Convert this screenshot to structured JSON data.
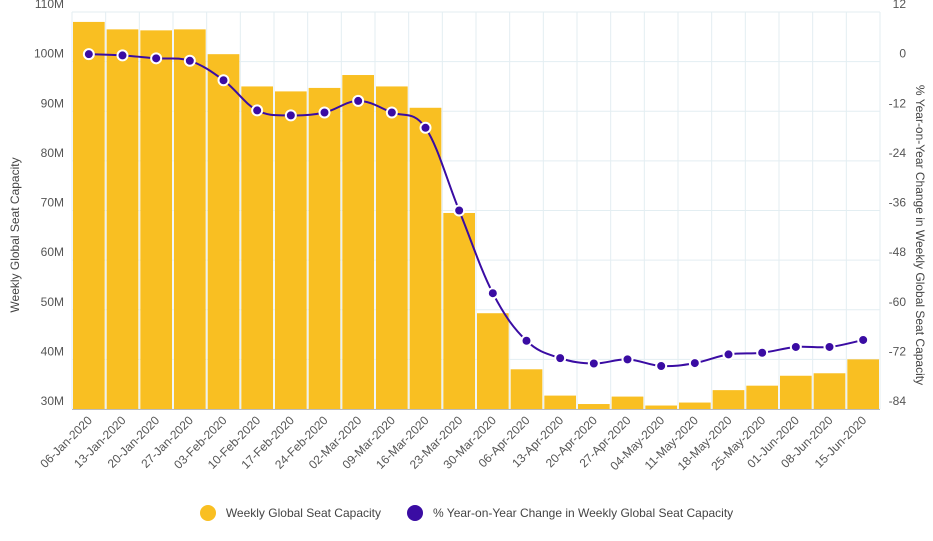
{
  "chart_data": {
    "type": "bar",
    "title": "",
    "categories": [
      "06-Jan-2020",
      "13-Jan-2020",
      "20-Jan-2020",
      "27-Jan-2020",
      "03-Feb-2020",
      "10-Feb-2020",
      "17-Feb-2020",
      "24-Feb-2020",
      "02-Mar-2020",
      "09-Mar-2020",
      "16-Mar-2020",
      "23-Mar-2020",
      "30-Mar-2020",
      "06-Apr-2020",
      "13-Apr-2020",
      "20-Apr-2020",
      "27-Apr-2020",
      "04-May-2020",
      "11-May-2020",
      "18-May-2020",
      "25-May-2020",
      "01-Jun-2020",
      "08-Jun-2020",
      "15-Jun-2020"
    ],
    "series": [
      {
        "name": "Weekly Global Seat Capacity",
        "type": "bar",
        "axis": "left",
        "color": "#F9BF22",
        "values": [
          108,
          106.5,
          106.3,
          106.5,
          101.5,
          95,
          94,
          94.7,
          97.3,
          95,
          90.7,
          69.5,
          49.3,
          38,
          32.7,
          31,
          32.5,
          30.7,
          31.3,
          33.8,
          34.7,
          36.7,
          37.2,
          40
        ]
      },
      {
        "name": "% Year-on-Year Change in Weekly Global Seat Capacity",
        "type": "line",
        "axis": "right",
        "color": "#3A0CA3",
        "values": [
          1.8,
          1.5,
          0.8,
          0.2,
          -4.5,
          -11.8,
          -13,
          -12.3,
          -9.5,
          -12.3,
          -16,
          -36,
          -56,
          -67.5,
          -71.7,
          -73,
          -72,
          -73.6,
          -72.9,
          -70.8,
          -70.4,
          -69,
          -69,
          -67.3
        ]
      }
    ],
    "y_left": {
      "label": "Weekly Global Seat Capacity",
      "min": 30,
      "max": 110,
      "ticks": [
        30,
        40,
        50,
        60,
        70,
        80,
        90,
        100,
        110
      ],
      "tick_labels": [
        "30M",
        "40M",
        "50M",
        "60M",
        "70M",
        "80M",
        "90M",
        "100M",
        "110M"
      ]
    },
    "y_right": {
      "label": "% Year-on-Year Change in Weekly Global Seat Capacity",
      "min": -84,
      "max": 12,
      "ticks": [
        12,
        0,
        -12,
        -24,
        -36,
        -48,
        -60,
        -72,
        -84
      ],
      "tick_labels": [
        "12",
        "0",
        "-12",
        "-24",
        "-36",
        "-48",
        "-60",
        "-72",
        "-84"
      ]
    },
    "grid": true,
    "legend": "bottom-center"
  }
}
